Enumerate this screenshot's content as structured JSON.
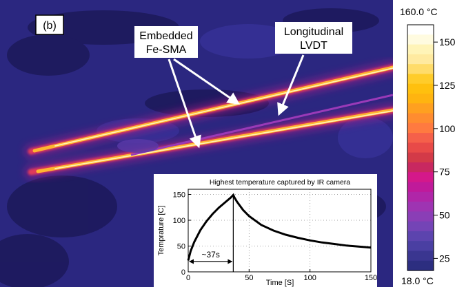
{
  "panel_label": "(b)",
  "annotations": {
    "sma_line1": "Embedded",
    "sma_line2": "Fe-SMA",
    "lvdt_line1": "Longitudinal",
    "lvdt_line2": "LVDT",
    "duration": "~37s"
  },
  "colorbar": {
    "max_label": "160.0 °C",
    "min_label": "18.0 °C",
    "min": 18.0,
    "max": 160.0,
    "ticks": [
      "150",
      "125",
      "100",
      "75",
      "50",
      "25"
    ],
    "tick_values": [
      150,
      125,
      100,
      75,
      50,
      25
    ]
  },
  "colors": {
    "background": "#2b2780",
    "stripe_glow": "#c0208a",
    "stripe_core": "#ffd040"
  },
  "chart_data": {
    "type": "line",
    "title": "Highest temperature captured by IR camera",
    "xlabel": "Time [S]",
    "ylabel": "Temprature [C]",
    "xlim": [
      0,
      150
    ],
    "ylim": [
      0,
      160
    ],
    "xticks": [
      0,
      50,
      100,
      150
    ],
    "yticks": [
      0,
      50,
      100,
      150
    ],
    "grid": "dotted",
    "series": [
      {
        "x": [
          0,
          2,
          5,
          10,
          15,
          20,
          25,
          30,
          35,
          37,
          38,
          40,
          45,
          50,
          60,
          70,
          80,
          90,
          100,
          110,
          120,
          130,
          140,
          150
        ],
        "y": [
          22,
          40,
          58,
          81,
          98,
          112,
          124,
          134,
          144,
          149,
          144,
          136,
          120,
          108,
          91,
          80,
          72,
          66,
          61,
          57,
          54,
          51,
          49,
          47
        ]
      }
    ]
  }
}
